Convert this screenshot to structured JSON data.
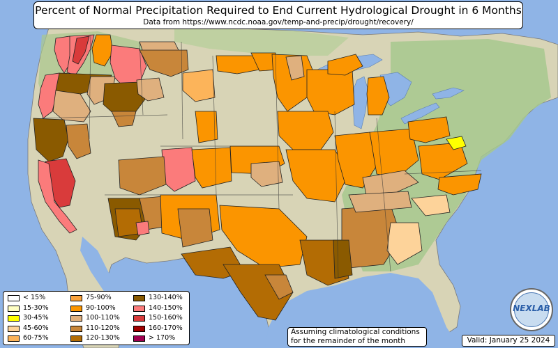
{
  "title": "Percent of Normal Precipitation Required to End Current Hydrological Drought in 6 Months",
  "subtitle": "Data from https://www.ncdc.noaa.gov/temp-and-precip/drought/recovery/",
  "note": [
    "Assuming climatological conditions",
    "for the remainder of the month"
  ],
  "valid": "Valid: January 25 2024",
  "logo_text": "NEXLAB",
  "legend": [
    {
      "label": "< 15%",
      "color": "#ffffff"
    },
    {
      "label": "15-30%",
      "color": "#ffffc4"
    },
    {
      "label": "30-45%",
      "color": "#ffff00"
    },
    {
      "label": "45-60%",
      "color": "#fdd39a"
    },
    {
      "label": "60-75%",
      "color": "#fcb45a"
    },
    {
      "label": "75-90%",
      "color": "#f9a23b"
    },
    {
      "label": "90-100%",
      "color": "#fb9500"
    },
    {
      "label": "100-110%",
      "color": "#dfb07e"
    },
    {
      "label": "110-120%",
      "color": "#c8863a"
    },
    {
      "label": "120-130%",
      "color": "#b36c04"
    },
    {
      "label": "130-140%",
      "color": "#8a5a00"
    },
    {
      "label": "140-150%",
      "color": "#fb7b7b"
    },
    {
      "label": "150-160%",
      "color": "#d93b3b"
    },
    {
      "label": "160-170%",
      "color": "#a00000"
    },
    {
      "label": "> 170%",
      "color": "#a0004f"
    }
  ],
  "colors": {
    "ocean": "#8fb4e6",
    "land_base": "#d6d2b4",
    "land_green": "#a9c98f",
    "border": "#222222"
  }
}
